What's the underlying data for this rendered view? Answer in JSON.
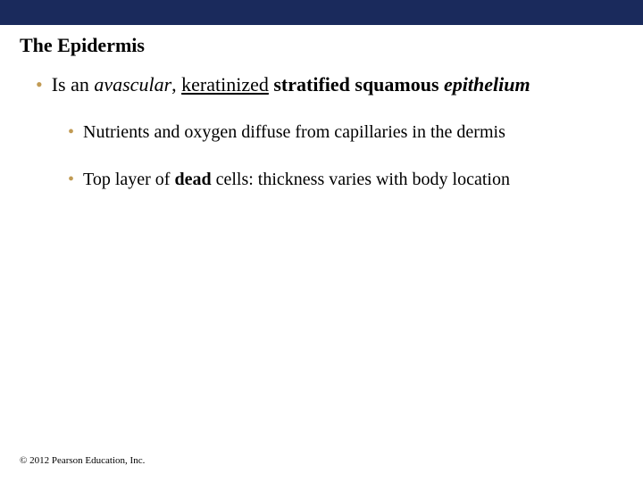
{
  "colors": {
    "top_bar": "#1a2a5c",
    "bullet": "#c19b54",
    "background": "#ffffff",
    "text": "#000000"
  },
  "title": "The Epidermis",
  "bullets": {
    "b1_pre": "Is an ",
    "b1_em1": "avascular",
    "b1_mid": ", ",
    "b1_u": "keratinized",
    "b1_sp": " ",
    "b1_strong": "stratified squamous",
    "b1_sp2": " ",
    "b1_em2": "epithelium",
    "b2": "Nutrients and oxygen diffuse from capillaries in the dermis",
    "b3_pre": "Top layer of ",
    "b3_strong": "dead",
    "b3_post": " cells: thickness varies with body location"
  },
  "footer": "© 2012 Pearson Education, Inc."
}
